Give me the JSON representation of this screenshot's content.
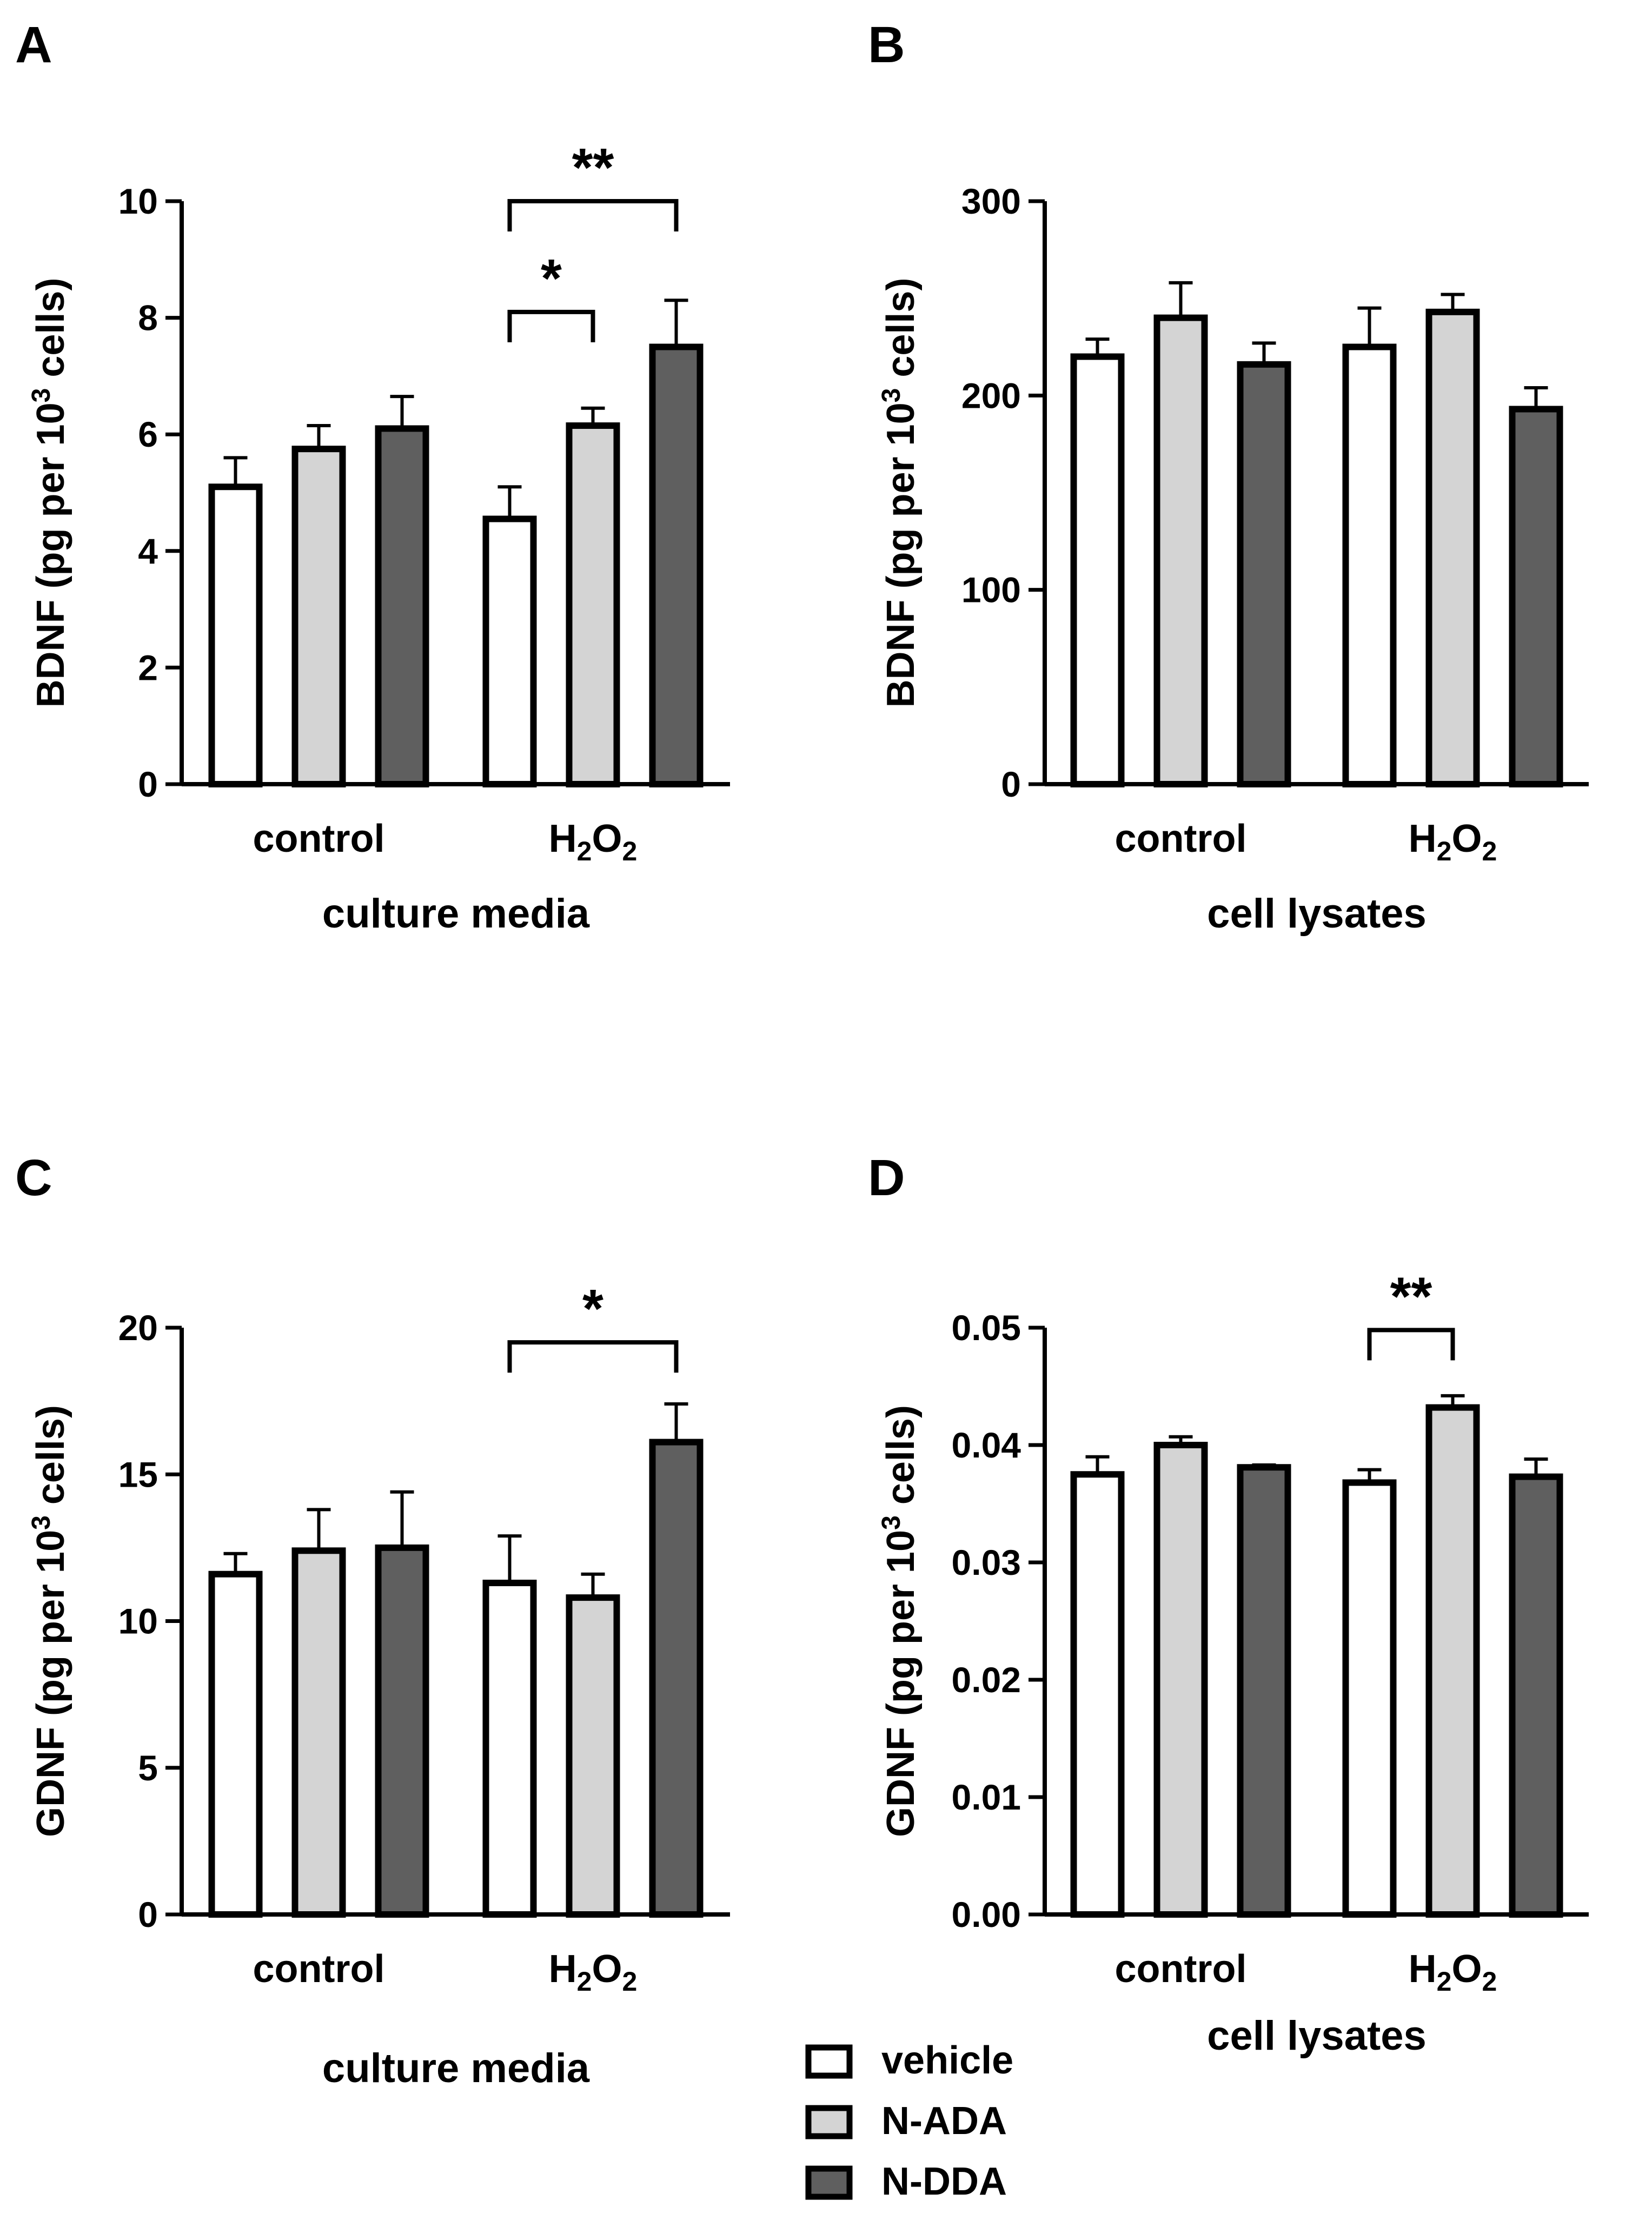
{
  "colors": {
    "vehicle": "#ffffff",
    "N-ADA": "#d4d4d4",
    "N-DDA": "#5f5f5f",
    "stroke": "#000000"
  },
  "legend": [
    {
      "key": "vehicle",
      "label": "vehicle"
    },
    {
      "key": "N-ADA",
      "label": "N-ADA"
    },
    {
      "key": "N-DDA",
      "label": "N-DDA"
    }
  ],
  "chart_data": [
    {
      "panel": "A",
      "type": "bar",
      "ylabel_main": "BDNF (pg per 10",
      "ylabel_sup": "3",
      "ylabel_end": " cells)",
      "xlabel": "culture media",
      "ylim": [
        0,
        10
      ],
      "yticks": [
        0,
        2,
        4,
        6,
        8,
        10
      ],
      "categories": [
        {
          "label": "control",
          "values": [
            5.1,
            5.75,
            6.1
          ],
          "errors": [
            0.5,
            0.4,
            0.55
          ]
        },
        {
          "label": "H₂O₂",
          "values": [
            4.55,
            6.15,
            7.5
          ],
          "errors": [
            0.55,
            0.3,
            0.8
          ]
        }
      ],
      "significance": [
        {
          "category": 1,
          "from": 0,
          "to": 1,
          "level": 8.1,
          "label": "*"
        },
        {
          "category": 1,
          "from": 0,
          "to": 2,
          "level": 10.0,
          "label": "**"
        }
      ]
    },
    {
      "panel": "B",
      "type": "bar",
      "ylabel_main": "BDNF (pg per 10",
      "ylabel_sup": "3",
      "ylabel_end": " cells)",
      "xlabel": "cell lysates",
      "ylim": [
        0,
        300
      ],
      "yticks": [
        0,
        100,
        200,
        300
      ],
      "categories": [
        {
          "label": "control",
          "values": [
            220,
            240,
            216
          ],
          "errors": [
            9,
            18,
            11
          ]
        },
        {
          "label": "H₂O₂",
          "values": [
            225,
            243,
            193
          ],
          "errors": [
            20,
            9,
            11
          ]
        }
      ],
      "significance": []
    },
    {
      "panel": "C",
      "type": "bar",
      "ylabel_main": "GDNF (pg per 10",
      "ylabel_sup": "3",
      "ylabel_end": " cells)",
      "xlabel": "culture media",
      "ylim": [
        0,
        20
      ],
      "yticks": [
        0,
        5,
        10,
        15,
        20
      ],
      "categories": [
        {
          "label": "control",
          "values": [
            11.6,
            12.4,
            12.5
          ],
          "errors": [
            0.7,
            1.4,
            1.9
          ]
        },
        {
          "label": "H₂O₂",
          "values": [
            11.3,
            10.8,
            16.1
          ],
          "errors": [
            1.6,
            0.8,
            1.3
          ]
        }
      ],
      "significance": [
        {
          "category": 1,
          "from": 0,
          "to": 2,
          "level": 19.5,
          "label": "*"
        }
      ]
    },
    {
      "panel": "D",
      "type": "bar",
      "ylabel_main": "GDNF (pg per 10",
      "ylabel_sup": "3",
      "ylabel_end": " cells)",
      "xlabel": "cell lysates",
      "ylim": [
        0,
        0.05
      ],
      "yticks": [
        0.0,
        0.01,
        0.02,
        0.03,
        0.04,
        0.05
      ],
      "categories": [
        {
          "label": "control",
          "values": [
            0.0375,
            0.04,
            0.0381
          ],
          "errors": [
            0.0015,
            0.0007,
            0.0002
          ]
        },
        {
          "label": "H₂O₂",
          "values": [
            0.0368,
            0.0432,
            0.0373
          ],
          "errors": [
            0.0011,
            0.001,
            0.0015
          ]
        }
      ],
      "significance": [
        {
          "category": 1,
          "from": 0,
          "to": 1,
          "level": 0.0498,
          "label": "**"
        }
      ]
    }
  ]
}
